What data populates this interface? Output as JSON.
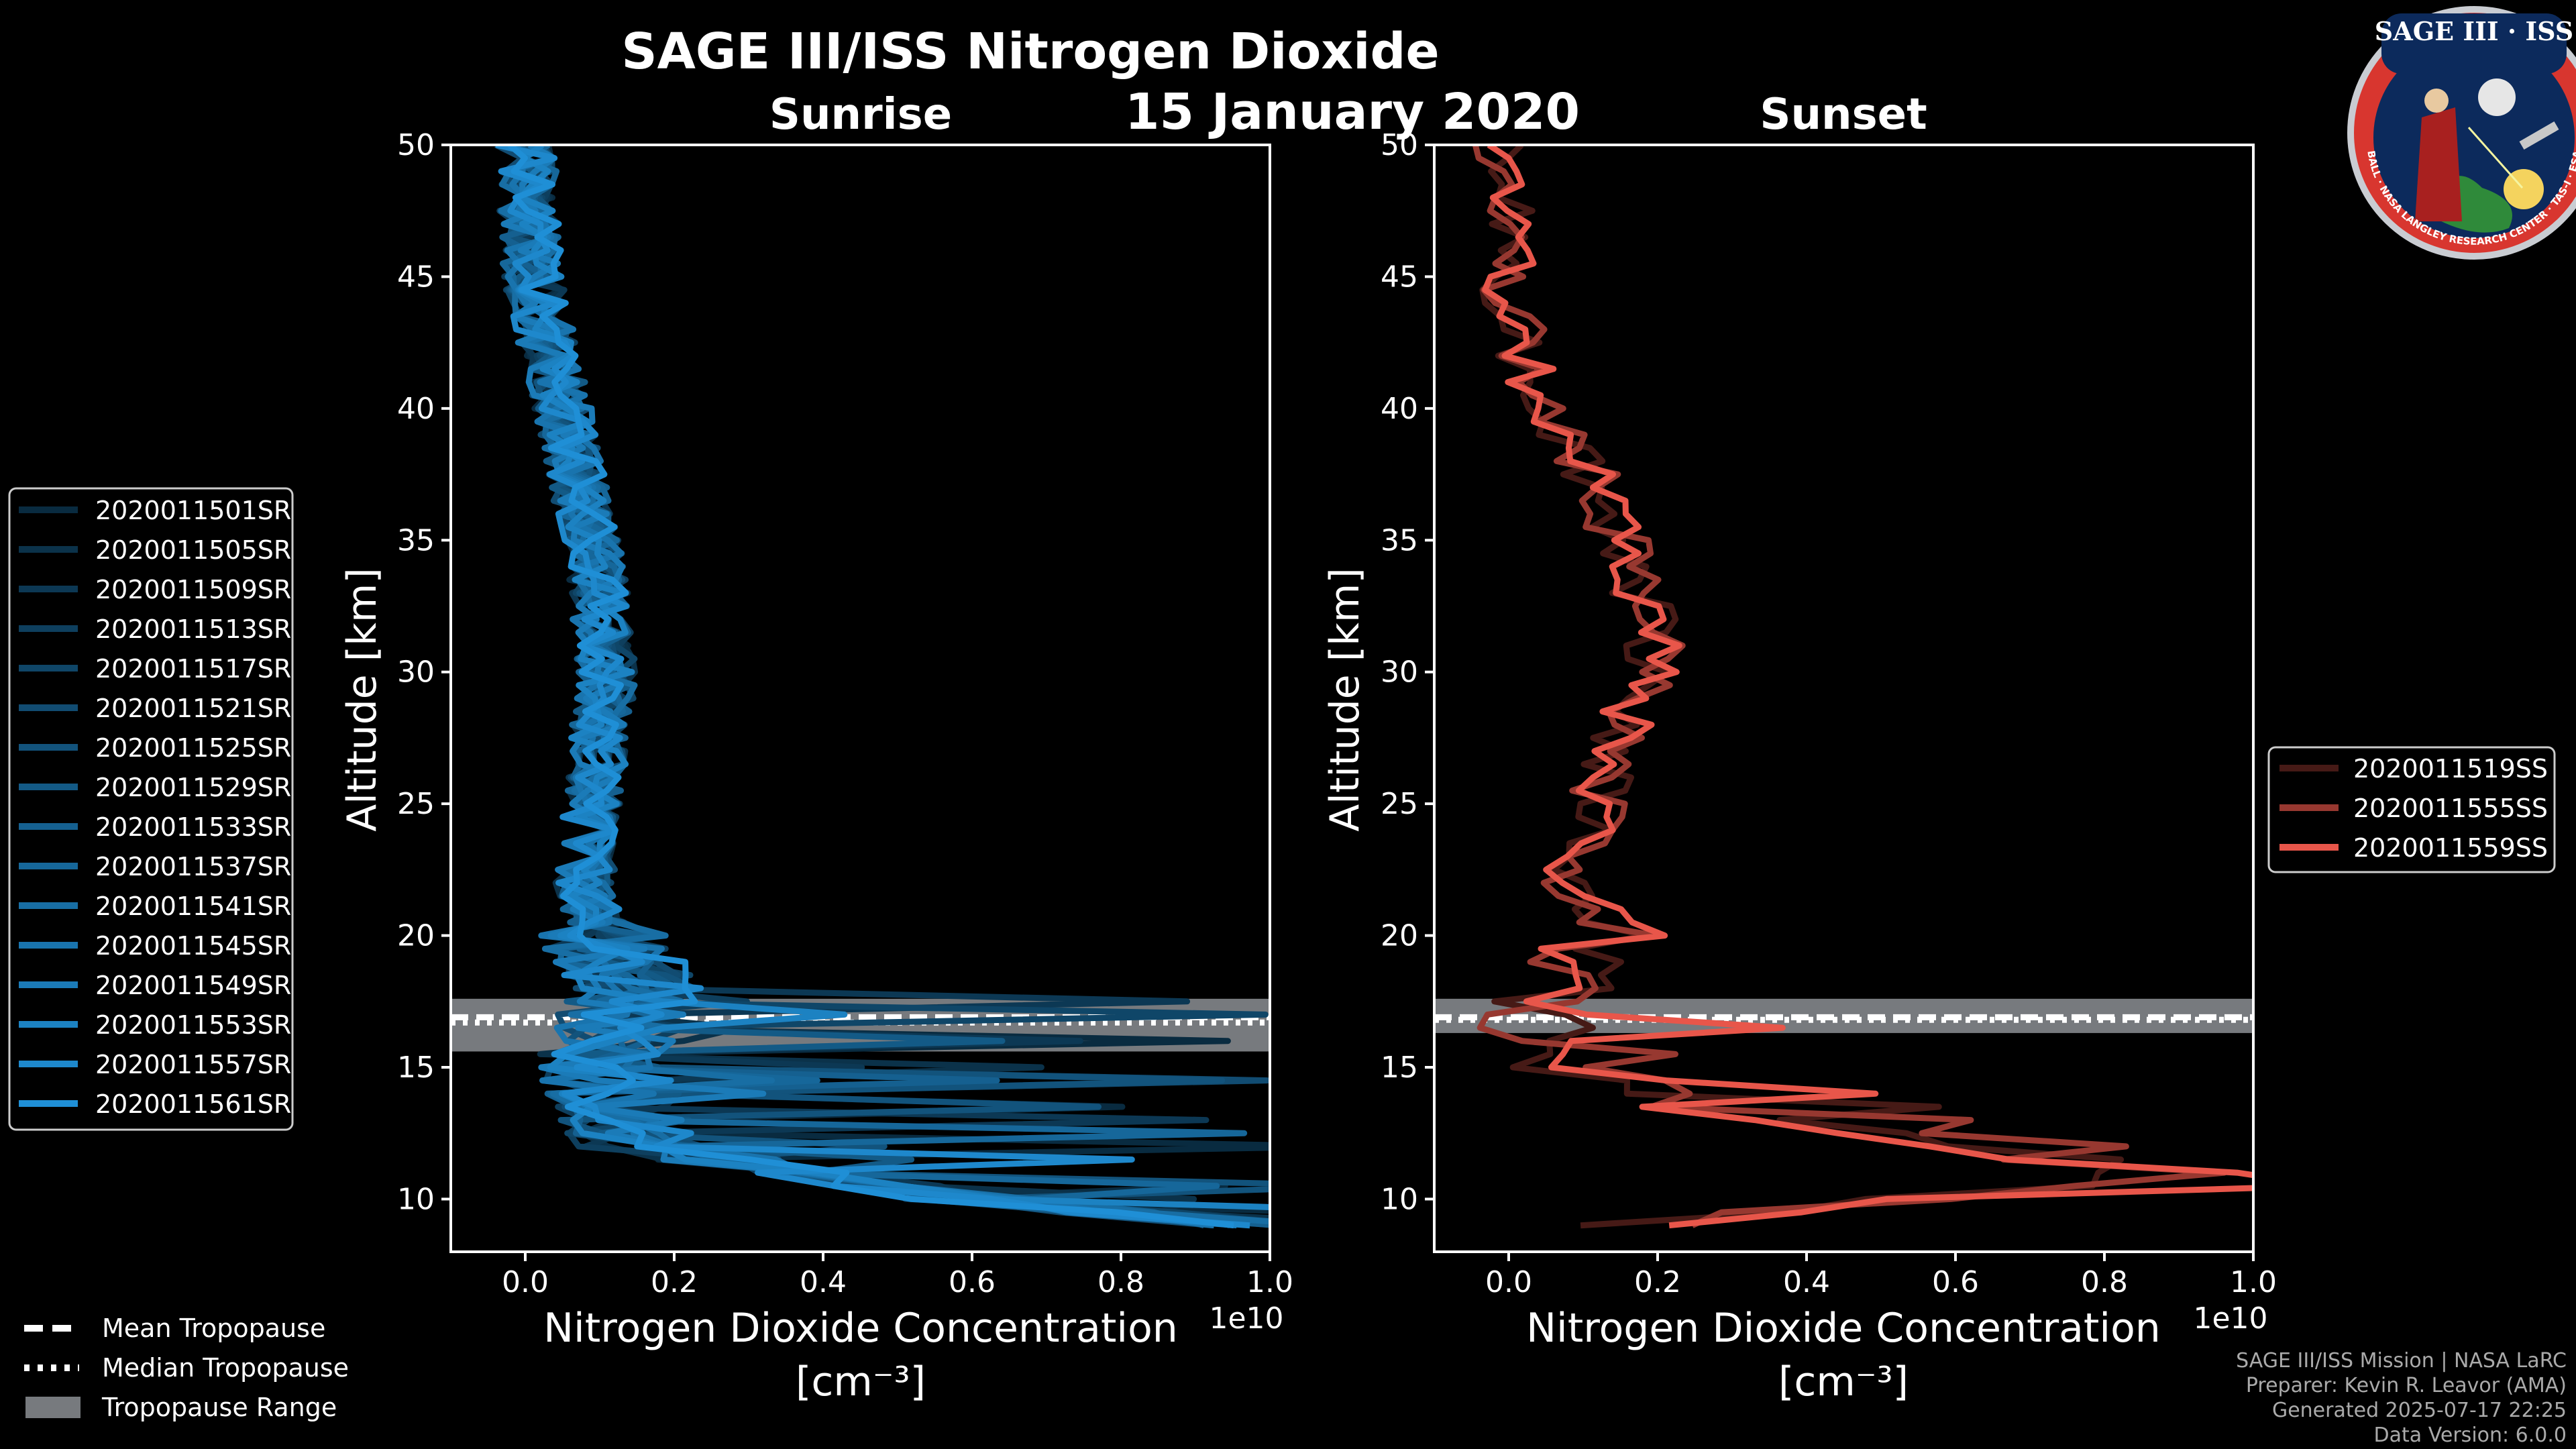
{
  "title": "SAGE III/ISS Nitrogen Dioxide",
  "date": "15 January 2020",
  "colors": {
    "sunrise": "#1f8fd6",
    "sunset": "#e8564a",
    "tropopause_fill": "#777a7e"
  },
  "chart_data": [
    {
      "type": "line",
      "subtitle": "Sunrise",
      "xlabel": "Nitrogen Dioxide Concentration",
      "xlabel_unit": "[cm⁻³]",
      "ylabel": "Altitude [km]",
      "x_multiplier": "1e10",
      "xlim": [
        -0.1,
        1.0
      ],
      "ylim": [
        8,
        50
      ],
      "xticks": [
        "0.0",
        "0.2",
        "0.4",
        "0.6",
        "0.8",
        "1.0"
      ],
      "yticks": [
        "10",
        "15",
        "20",
        "25",
        "30",
        "35",
        "40",
        "45",
        "50"
      ],
      "tropopause": {
        "mean": 16.9,
        "median": 16.7,
        "range": [
          15.6,
          17.6
        ]
      },
      "series": [
        {
          "name": "2020011501SR"
        },
        {
          "name": "2020011505SR"
        },
        {
          "name": "2020011509SR"
        },
        {
          "name": "2020011513SR"
        },
        {
          "name": "2020011517SR"
        },
        {
          "name": "2020011521SR"
        },
        {
          "name": "2020011525SR"
        },
        {
          "name": "2020011529SR"
        },
        {
          "name": "2020011533SR"
        },
        {
          "name": "2020011537SR"
        },
        {
          "name": "2020011541SR"
        },
        {
          "name": "2020011545SR"
        },
        {
          "name": "2020011549SR"
        },
        {
          "name": "2020011553SR"
        },
        {
          "name": "2020011557SR"
        },
        {
          "name": "2020011561SR"
        }
      ],
      "typical_profile": [
        {
          "alt": 50,
          "x": 0.0
        },
        {
          "alt": 45,
          "x": 0.01
        },
        {
          "alt": 40,
          "x": 0.05
        },
        {
          "alt": 35,
          "x": 0.09
        },
        {
          "alt": 30,
          "x": 0.11
        },
        {
          "alt": 25,
          "x": 0.09
        },
        {
          "alt": 22,
          "x": 0.08
        },
        {
          "alt": 20,
          "x": 0.1
        },
        {
          "alt": 18,
          "x": 0.15
        },
        {
          "alt": 15,
          "x": 0.1
        },
        {
          "alt": 12,
          "x": 0.15
        },
        {
          "alt": 10,
          "x": 0.6
        },
        {
          "alt": 9,
          "x": 1.0
        }
      ]
    },
    {
      "type": "line",
      "subtitle": "Sunset",
      "xlabel": "Nitrogen Dioxide Concentration",
      "xlabel_unit": "[cm⁻³]",
      "ylabel": "Altitude [km]",
      "x_multiplier": "1e10",
      "xlim": [
        -0.1,
        1.0
      ],
      "ylim": [
        8,
        50
      ],
      "xticks": [
        "0.0",
        "0.2",
        "0.4",
        "0.6",
        "0.8",
        "1.0"
      ],
      "yticks": [
        "10",
        "15",
        "20",
        "25",
        "30",
        "35",
        "40",
        "45",
        "50"
      ],
      "tropopause": {
        "mean": 16.9,
        "median": 16.8,
        "range": [
          16.3,
          17.6
        ]
      },
      "series": [
        {
          "name": "2020011519SS"
        },
        {
          "name": "2020011555SS"
        },
        {
          "name": "2020011559SS"
        }
      ],
      "typical_profile": [
        {
          "alt": 50,
          "x": -0.01
        },
        {
          "alt": 45,
          "x": 0.0
        },
        {
          "alt": 42,
          "x": 0.02
        },
        {
          "alt": 40,
          "x": 0.05
        },
        {
          "alt": 38,
          "x": 0.1
        },
        {
          "alt": 35,
          "x": 0.15
        },
        {
          "alt": 32,
          "x": 0.19
        },
        {
          "alt": 30,
          "x": 0.2
        },
        {
          "alt": 27,
          "x": 0.13
        },
        {
          "alt": 25,
          "x": 0.12
        },
        {
          "alt": 22,
          "x": 0.08
        },
        {
          "alt": 20,
          "x": 0.15
        },
        {
          "alt": 18,
          "x": 0.05
        },
        {
          "alt": 15,
          "x": 0.05
        },
        {
          "alt": 13,
          "x": 0.34
        },
        {
          "alt": 11,
          "x": 0.88
        },
        {
          "alt": 9,
          "x": 0.18
        }
      ]
    }
  ],
  "legend_tropopause": {
    "mean": "Mean Tropopause",
    "median": "Median Tropopause",
    "range": "Tropopause Range"
  },
  "credits": [
    "SAGE III/ISS Mission | NASA LaRC",
    "Preparer: Kevin R. Leavor (AMA)",
    "Generated 2025-07-17 22:25",
    "Data Version: 6.0.0"
  ],
  "logo": {
    "top_text": "SAGE III · ISS",
    "ring_text": "BALL · NASA LANGLEY RESEARCH CENTER · TAS-I · ESA"
  }
}
